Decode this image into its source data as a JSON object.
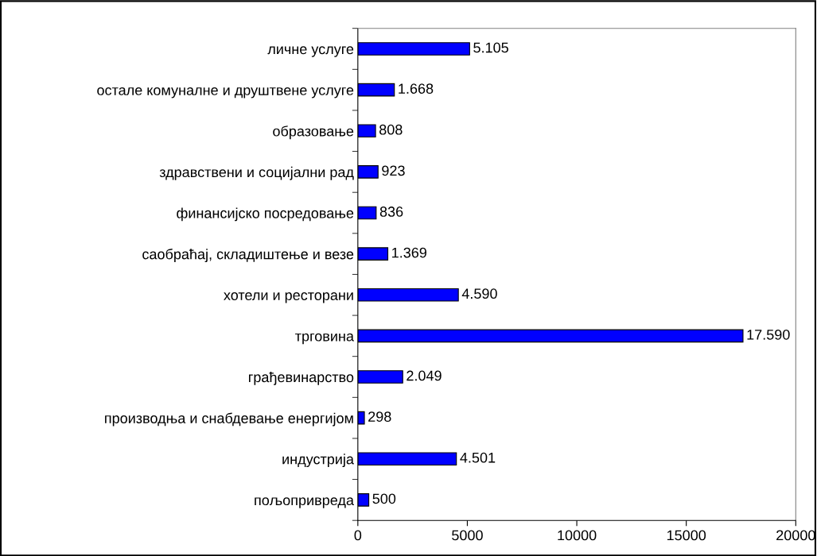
{
  "chart_data": {
    "type": "bar",
    "orientation": "horizontal",
    "categories": [
      "личне услуге",
      "остале комуналне и друштвене услуге",
      "образовање",
      "здравствени и социјални рад",
      "финансијско посредовање",
      "саобраћај, складиштење и везе",
      "хотели и ресторани",
      "трговина",
      "грађевинарство",
      "производња и снабдевање енергијом",
      "индустрија",
      "пољопривреда"
    ],
    "values": [
      5105,
      1668,
      808,
      923,
      836,
      1369,
      4590,
      17590,
      2049,
      298,
      4501,
      500
    ],
    "value_labels": [
      "5.105",
      "1.668",
      "808",
      "923",
      "836",
      "1.369",
      "4.590",
      "17.590",
      "2.049",
      "298",
      "4.501",
      "500"
    ],
    "color": "#0000ff",
    "xlim": [
      0,
      20000
    ],
    "xticks": [
      0,
      5000,
      10000,
      15000,
      20000
    ],
    "grid": false,
    "legend": false
  }
}
